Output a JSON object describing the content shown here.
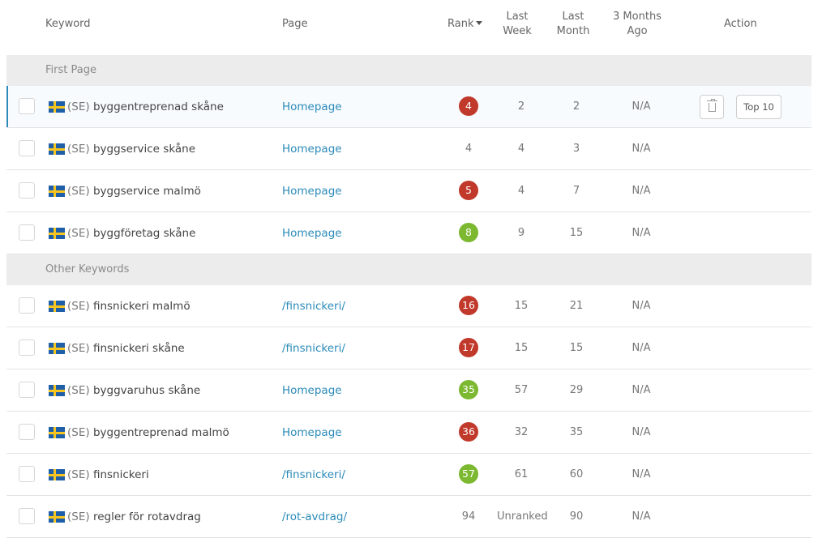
{
  "header": {
    "keyword": "Keyword",
    "page": "Page",
    "rank": "Rank",
    "last_week_1": "Last",
    "last_week_2": "Week",
    "last_month_1": "Last",
    "last_month_2": "Month",
    "ago_1": "3 Months",
    "ago_2": "Ago",
    "action": "Action"
  },
  "sections": {
    "first_page": "First Page",
    "other_keywords": "Other Keywords"
  },
  "actions": {
    "top10_label": "Top 10",
    "delete_icon": "trash-icon"
  },
  "colors": {
    "rank_red": "#c0392b",
    "rank_green": "#7cb830",
    "link": "#2a8ab9",
    "accent": "#2b8ab8"
  },
  "rows_first": [
    {
      "cc": "(SE)",
      "keyword": "byggentreprenad skåne",
      "page": "Homepage",
      "rank": "4",
      "rank_style": "red",
      "week": "2",
      "month": "2",
      "ago": "N/A"
    },
    {
      "cc": "(SE)",
      "keyword": "byggservice skåne",
      "page": "Homepage",
      "rank": "4",
      "rank_style": "plain",
      "week": "4",
      "month": "3",
      "ago": "N/A"
    },
    {
      "cc": "(SE)",
      "keyword": "byggservice malmö",
      "page": "Homepage",
      "rank": "5",
      "rank_style": "red",
      "week": "4",
      "month": "7",
      "ago": "N/A"
    },
    {
      "cc": "(SE)",
      "keyword": "byggföretag skåne",
      "page": "Homepage",
      "rank": "8",
      "rank_style": "green",
      "week": "9",
      "month": "15",
      "ago": "N/A"
    }
  ],
  "rows_other": [
    {
      "cc": "(SE)",
      "keyword": "finsnickeri malmö",
      "page": "/finsnickeri/",
      "rank": "16",
      "rank_style": "red",
      "week": "15",
      "month": "21",
      "ago": "N/A"
    },
    {
      "cc": "(SE)",
      "keyword": "finsnickeri skåne",
      "page": "/finsnickeri/",
      "rank": "17",
      "rank_style": "red",
      "week": "15",
      "month": "15",
      "ago": "N/A"
    },
    {
      "cc": "(SE)",
      "keyword": "byggvaruhus skåne",
      "page": "Homepage",
      "rank": "35",
      "rank_style": "green",
      "week": "57",
      "month": "29",
      "ago": "N/A"
    },
    {
      "cc": "(SE)",
      "keyword": "byggentreprenad malmö",
      "page": "Homepage",
      "rank": "36",
      "rank_style": "red",
      "week": "32",
      "month": "35",
      "ago": "N/A"
    },
    {
      "cc": "(SE)",
      "keyword": "finsnickeri",
      "page": "/finsnickeri/",
      "rank": "57",
      "rank_style": "green",
      "week": "61",
      "month": "60",
      "ago": "N/A"
    },
    {
      "cc": "(SE)",
      "keyword": "regler för rotavdrag",
      "page": "/rot-avdrag/",
      "rank": "94",
      "rank_style": "plain",
      "week": "Unranked",
      "month": "90",
      "ago": "N/A"
    }
  ]
}
